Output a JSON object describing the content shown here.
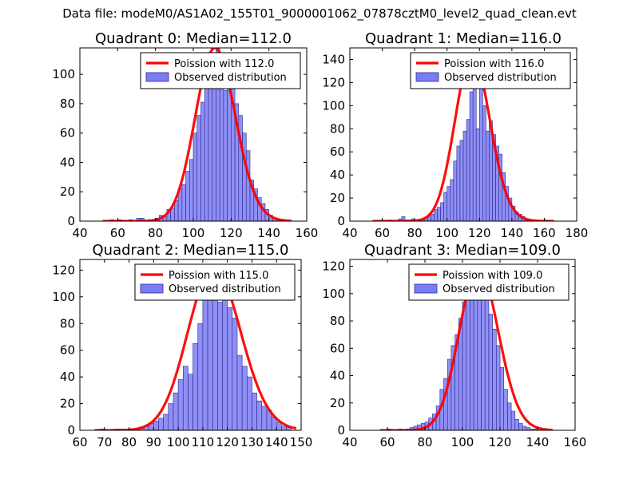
{
  "figure": {
    "suptitle": "Data file: modeM0/AS1A02_155T01_9000001062_07878cztM0_level2_quad_clean.evt"
  },
  "colors": {
    "hist_fill": "#7b7bf5",
    "hist_edge": "#2a2a8a",
    "poisson": "#ff0000"
  },
  "chart_data": [
    {
      "type": "bar",
      "title": "Quadrant 0: Median=112.0",
      "median": 112.0,
      "xlim": [
        40,
        160
      ],
      "ylim": [
        0,
        118
      ],
      "xticks": [
        40,
        60,
        80,
        100,
        120,
        140,
        160
      ],
      "yticks": [
        0,
        20,
        40,
        60,
        80,
        100
      ],
      "legend": {
        "position": "top-right",
        "poisson_label": "Poission with 112.0",
        "observed_label": "Observed distribution"
      },
      "bin_start": 52,
      "bin_width": 2,
      "counts": [
        0,
        0,
        1,
        0,
        1,
        0,
        0,
        1,
        0,
        2,
        2,
        0,
        1,
        0,
        2,
        4,
        3,
        8,
        9,
        14,
        22,
        25,
        34,
        42,
        60,
        72,
        81,
        95,
        104,
        113,
        118,
        97,
        89,
        92,
        96,
        80,
        72,
        60,
        48,
        28,
        22,
        16,
        12,
        8,
        4,
        2,
        1,
        1,
        0,
        0
      ],
      "poisson": {
        "mean": 112.0,
        "scale": 118,
        "x_range": [
          52,
          152
        ]
      }
    },
    {
      "type": "bar",
      "title": "Quadrant 1: Median=116.0",
      "median": 116.0,
      "xlim": [
        40,
        180
      ],
      "ylim": [
        0,
        150
      ],
      "xticks": [
        40,
        60,
        80,
        100,
        120,
        140,
        160,
        180
      ],
      "yticks": [
        0,
        20,
        40,
        60,
        80,
        100,
        120,
        140
      ],
      "legend": {
        "position": "top-right",
        "poisson_label": "Poission with 116.0",
        "observed_label": "Observed distribution"
      },
      "bin_start": 56,
      "bin_width": 2,
      "counts": [
        0,
        0,
        0,
        0,
        1,
        0,
        0,
        2,
        4,
        1,
        1,
        2,
        0,
        1,
        2,
        3,
        5,
        6,
        10,
        12,
        16,
        25,
        30,
        36,
        52,
        65,
        70,
        78,
        88,
        112,
        120,
        80,
        122,
        100,
        78,
        87,
        75,
        65,
        58,
        42,
        30,
        20,
        13,
        8,
        6,
        4,
        2,
        1,
        0,
        0,
        0,
        0,
        0,
        0,
        0,
        0
      ],
      "poisson": {
        "mean": 116.0,
        "scale": 144,
        "x_range": [
          54,
          166
        ]
      }
    },
    {
      "type": "bar",
      "title": "Quadrant 2: Median=115.0",
      "median": 115.0,
      "xlim": [
        60,
        150
      ],
      "ylim": [
        0,
        128
      ],
      "xticks": [
        60,
        70,
        80,
        90,
        100,
        110,
        120,
        130,
        140,
        150
      ],
      "yticks": [
        0,
        20,
        40,
        60,
        80,
        100,
        120
      ],
      "legend": {
        "position": "top-right",
        "poisson_label": "Poission with 115.0",
        "observed_label": "Observed distribution"
      },
      "bin_start": 68,
      "bin_width": 2,
      "counts": [
        1,
        0,
        0,
        1,
        1,
        1,
        0,
        1,
        2,
        3,
        5,
        7,
        9,
        12,
        20,
        28,
        38,
        48,
        42,
        65,
        80,
        112,
        110,
        104,
        96,
        98,
        92,
        84,
        56,
        48,
        40,
        28,
        22,
        18,
        15,
        10,
        6,
        3,
        2
      ],
      "poisson": {
        "mean": 115.0,
        "scale": 122,
        "x_range": [
          66,
          148
        ]
      }
    },
    {
      "type": "bar",
      "title": "Quadrant 3: Median=109.0",
      "median": 109.0,
      "xlim": [
        40,
        160
      ],
      "ylim": [
        0,
        125
      ],
      "xticks": [
        40,
        60,
        80,
        100,
        120,
        140,
        160
      ],
      "yticks": [
        0,
        20,
        40,
        60,
        80,
        100,
        120
      ],
      "legend": {
        "position": "top-right",
        "poisson_label": "Poission with 109.0",
        "observed_label": "Observed distribution"
      },
      "bin_start": 58,
      "bin_width": 2,
      "counts": [
        0,
        1,
        0,
        0,
        1,
        0,
        1,
        2,
        3,
        4,
        5,
        6,
        9,
        12,
        18,
        30,
        38,
        52,
        62,
        70,
        82,
        94,
        104,
        110,
        112,
        115,
        108,
        96,
        85,
        74,
        62,
        46,
        30,
        20,
        14,
        8,
        5,
        3,
        2,
        1,
        1,
        0,
        0,
        0,
        0
      ],
      "poisson": {
        "mean": 109.0,
        "scale": 119,
        "x_range": [
          56,
          148
        ]
      }
    }
  ]
}
